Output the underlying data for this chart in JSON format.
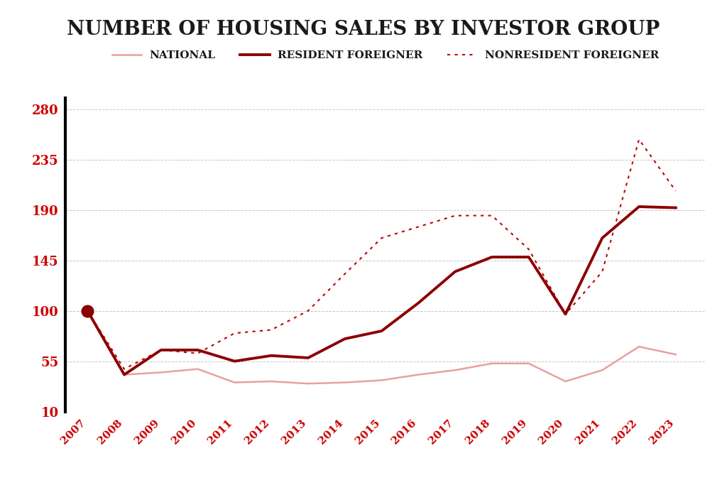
{
  "title": "NUMBER OF HOUSING SALES BY INVESTOR GROUP",
  "years": [
    2007,
    2008,
    2009,
    2010,
    2011,
    2012,
    2013,
    2014,
    2015,
    2016,
    2017,
    2018,
    2019,
    2020,
    2021,
    2022,
    2023
  ],
  "national": [
    100,
    43,
    45,
    48,
    36,
    37,
    35,
    36,
    38,
    43,
    47,
    53,
    53,
    37,
    47,
    68,
    61
  ],
  "resident_foreigner": [
    100,
    43,
    65,
    65,
    55,
    60,
    58,
    75,
    82,
    107,
    135,
    148,
    148,
    97,
    165,
    193,
    192
  ],
  "nonresident_foreigner": [
    100,
    48,
    65,
    62,
    80,
    83,
    100,
    133,
    165,
    175,
    185,
    185,
    155,
    97,
    135,
    253,
    207
  ],
  "ylim": [
    10,
    290
  ],
  "yticks": [
    10,
    55,
    100,
    145,
    190,
    235,
    280
  ],
  "line_color_national": "#e8a0a0",
  "line_color_resident": "#8b0000",
  "line_color_nonresident": "#c00000",
  "bg_color": "#ffffff",
  "grid_color": "#c0c0c0",
  "text_color": "#1a1a1a",
  "tick_color": "#cc0000",
  "legend_labels": [
    "NATIONAL",
    "RESIDENT FOREIGNER",
    "NONRESIDENT FOREIGNER"
  ]
}
